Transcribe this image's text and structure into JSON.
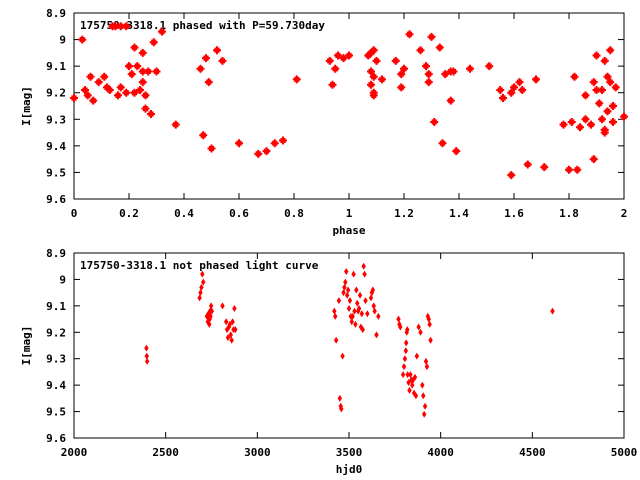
{
  "chart_data": [
    {
      "type": "scatter",
      "title": "175750-3318.1 phased with P=59.730day",
      "xlabel": "phase",
      "ylabel": "I[mag]",
      "xlim": [
        0,
        2
      ],
      "ylim": [
        9.6,
        8.9
      ],
      "y_inverted": true,
      "xticks": [
        "0",
        "0.2",
        "0.4",
        "0.6",
        "0.8",
        "1",
        "1.2",
        "1.4",
        "1.6",
        "1.8",
        "2"
      ],
      "yticks": [
        "8.9",
        "9",
        "9.1",
        "9.2",
        "9.3",
        "9.4",
        "9.5",
        "9.6"
      ],
      "grid": false,
      "marker_color": "#ff0000",
      "marker": "filled-square-plus",
      "points": [
        [
          0.0,
          9.22
        ],
        [
          0.03,
          9.0
        ],
        [
          0.04,
          9.19
        ],
        [
          0.05,
          9.21
        ],
        [
          0.06,
          9.14
        ],
        [
          0.07,
          9.23
        ],
        [
          0.09,
          9.16
        ],
        [
          0.11,
          9.14
        ],
        [
          0.12,
          9.18
        ],
        [
          0.13,
          9.19
        ],
        [
          0.14,
          8.95
        ],
        [
          0.15,
          8.95
        ],
        [
          0.16,
          9.21
        ],
        [
          0.17,
          9.18
        ],
        [
          0.17,
          8.95
        ],
        [
          0.19,
          8.95
        ],
        [
          0.19,
          9.2
        ],
        [
          0.2,
          9.1
        ],
        [
          0.21,
          9.13
        ],
        [
          0.22,
          9.03
        ],
        [
          0.22,
          9.2
        ],
        [
          0.23,
          9.1
        ],
        [
          0.24,
          9.19
        ],
        [
          0.25,
          9.16
        ],
        [
          0.25,
          9.05
        ],
        [
          0.25,
          9.12
        ],
        [
          0.26,
          9.26
        ],
        [
          0.26,
          9.21
        ],
        [
          0.27,
          9.12
        ],
        [
          0.28,
          9.28
        ],
        [
          0.29,
          9.01
        ],
        [
          0.3,
          9.12
        ],
        [
          0.32,
          8.97
        ],
        [
          0.37,
          9.32
        ],
        [
          0.46,
          9.11
        ],
        [
          0.47,
          9.36
        ],
        [
          0.48,
          9.07
        ],
        [
          0.49,
          9.16
        ],
        [
          0.5,
          9.41
        ],
        [
          0.52,
          9.04
        ],
        [
          0.54,
          9.08
        ],
        [
          0.6,
          9.39
        ],
        [
          0.67,
          9.43
        ],
        [
          0.7,
          9.42
        ],
        [
          0.73,
          9.39
        ],
        [
          0.76,
          9.38
        ],
        [
          0.81,
          9.15
        ],
        [
          0.93,
          9.08
        ],
        [
          0.94,
          9.17
        ],
        [
          0.95,
          9.11
        ],
        [
          0.96,
          9.06
        ],
        [
          0.98,
          9.07
        ],
        [
          1.0,
          9.06
        ],
        [
          1.07,
          9.06
        ],
        [
          1.08,
          9.05
        ],
        [
          1.08,
          9.12
        ],
        [
          1.08,
          9.17
        ],
        [
          1.09,
          9.14
        ],
        [
          1.09,
          9.21
        ],
        [
          1.09,
          9.2
        ],
        [
          1.09,
          9.04
        ],
        [
          1.1,
          9.08
        ],
        [
          1.12,
          9.15
        ],
        [
          1.17,
          9.08
        ],
        [
          1.19,
          9.13
        ],
        [
          1.19,
          9.18
        ],
        [
          1.2,
          9.11
        ],
        [
          1.22,
          8.98
        ],
        [
          1.26,
          9.04
        ],
        [
          1.28,
          9.1
        ],
        [
          1.29,
          9.13
        ],
        [
          1.29,
          9.16
        ],
        [
          1.3,
          8.99
        ],
        [
          1.31,
          9.31
        ],
        [
          1.33,
          9.03
        ],
        [
          1.34,
          9.39
        ],
        [
          1.35,
          9.13
        ],
        [
          1.37,
          9.12
        ],
        [
          1.37,
          9.23
        ],
        [
          1.38,
          9.12
        ],
        [
          1.39,
          9.42
        ],
        [
          1.44,
          9.11
        ],
        [
          1.51,
          9.1
        ],
        [
          1.55,
          9.19
        ],
        [
          1.56,
          9.22
        ],
        [
          1.59,
          9.2
        ],
        [
          1.59,
          9.51
        ],
        [
          1.6,
          9.18
        ],
        [
          1.62,
          9.16
        ],
        [
          1.63,
          9.19
        ],
        [
          1.65,
          9.47
        ],
        [
          1.68,
          9.15
        ],
        [
          1.71,
          9.48
        ],
        [
          1.78,
          9.32
        ],
        [
          1.8,
          9.49
        ],
        [
          1.81,
          9.31
        ],
        [
          1.82,
          9.14
        ],
        [
          1.83,
          9.49
        ],
        [
          1.84,
          9.33
        ],
        [
          1.86,
          9.21
        ],
        [
          1.86,
          9.3
        ],
        [
          1.88,
          9.32
        ],
        [
          1.89,
          9.45
        ],
        [
          1.89,
          9.16
        ],
        [
          1.9,
          9.06
        ],
        [
          1.9,
          9.19
        ],
        [
          1.91,
          9.24
        ],
        [
          1.92,
          9.19
        ],
        [
          1.92,
          9.3
        ],
        [
          1.93,
          9.34
        ],
        [
          1.93,
          9.35
        ],
        [
          1.93,
          9.08
        ],
        [
          1.94,
          9.27
        ],
        [
          1.94,
          9.14
        ],
        [
          1.95,
          9.04
        ],
        [
          1.95,
          9.16
        ],
        [
          1.96,
          9.31
        ],
        [
          1.96,
          9.25
        ],
        [
          1.97,
          9.18
        ],
        [
          2.0,
          9.29
        ]
      ]
    },
    {
      "type": "scatter",
      "title": "175750-3318.1 not phased light curve",
      "xlabel": "hjd0",
      "ylabel": "I[mag]",
      "xlim": [
        2000,
        5000
      ],
      "ylim": [
        9.6,
        8.9
      ],
      "y_inverted": true,
      "xticks": [
        "2000",
        "2500",
        "3000",
        "3500",
        "4000",
        "4500",
        "5000"
      ],
      "yticks": [
        "8.9",
        "9",
        "9.1",
        "9.2",
        "9.3",
        "9.4",
        "9.5",
        "9.6"
      ],
      "grid": false,
      "marker_color": "#ff0000",
      "marker": "diamond",
      "points": [
        [
          2395,
          9.26
        ],
        [
          2397,
          9.29
        ],
        [
          2399,
          9.31
        ],
        [
          2685,
          9.07
        ],
        [
          2690,
          9.05
        ],
        [
          2695,
          9.03
        ],
        [
          2700,
          8.98
        ],
        [
          2705,
          9.01
        ],
        [
          2725,
          9.14
        ],
        [
          2730,
          9.16
        ],
        [
          2733,
          9.13
        ],
        [
          2735,
          9.14
        ],
        [
          2738,
          9.17
        ],
        [
          2740,
          9.15
        ],
        [
          2742,
          9.12
        ],
        [
          2745,
          9.14
        ],
        [
          2748,
          9.1
        ],
        [
          2752,
          9.12
        ],
        [
          2810,
          9.1
        ],
        [
          2830,
          9.16
        ],
        [
          2835,
          9.19
        ],
        [
          2840,
          9.22
        ],
        [
          2845,
          9.18
        ],
        [
          2850,
          9.17
        ],
        [
          2855,
          9.21
        ],
        [
          2860,
          9.23
        ],
        [
          2865,
          9.16
        ],
        [
          2870,
          9.19
        ],
        [
          2875,
          9.11
        ],
        [
          2880,
          9.19
        ],
        [
          3420,
          9.12
        ],
        [
          3425,
          9.14
        ],
        [
          3430,
          9.23
        ],
        [
          3445,
          9.08
        ],
        [
          3450,
          9.45
        ],
        [
          3455,
          9.48
        ],
        [
          3458,
          9.49
        ],
        [
          3465,
          9.29
        ],
        [
          3470,
          9.05
        ],
        [
          3475,
          9.03
        ],
        [
          3480,
          9.01
        ],
        [
          3485,
          8.97
        ],
        [
          3490,
          9.06
        ],
        [
          3495,
          9.04
        ],
        [
          3500,
          9.11
        ],
        [
          3505,
          9.08
        ],
        [
          3510,
          9.14
        ],
        [
          3515,
          9.16
        ],
        [
          3520,
          9.14
        ],
        [
          3525,
          8.98
        ],
        [
          3530,
          9.12
        ],
        [
          3535,
          9.17
        ],
        [
          3540,
          9.04
        ],
        [
          3545,
          9.09
        ],
        [
          3550,
          9.12
        ],
        [
          3555,
          9.11
        ],
        [
          3560,
          9.06
        ],
        [
          3565,
          9.18
        ],
        [
          3570,
          9.13
        ],
        [
          3575,
          9.19
        ],
        [
          3580,
          8.95
        ],
        [
          3585,
          8.98
        ],
        [
          3590,
          9.08
        ],
        [
          3600,
          9.13
        ],
        [
          3620,
          9.07
        ],
        [
          3625,
          9.05
        ],
        [
          3630,
          9.04
        ],
        [
          3635,
          9.1
        ],
        [
          3640,
          9.12
        ],
        [
          3650,
          9.21
        ],
        [
          3660,
          9.14
        ],
        [
          3770,
          9.15
        ],
        [
          3775,
          9.17
        ],
        [
          3780,
          9.18
        ],
        [
          3795,
          9.36
        ],
        [
          3800,
          9.33
        ],
        [
          3805,
          9.3
        ],
        [
          3810,
          9.27
        ],
        [
          3812,
          9.24
        ],
        [
          3815,
          9.2
        ],
        [
          3818,
          9.19
        ],
        [
          3820,
          9.36
        ],
        [
          3825,
          9.39
        ],
        [
          3830,
          9.42
        ],
        [
          3835,
          9.36
        ],
        [
          3840,
          9.38
        ],
        [
          3845,
          9.4
        ],
        [
          3850,
          9.38
        ],
        [
          3855,
          9.43
        ],
        [
          3860,
          9.37
        ],
        [
          3865,
          9.44
        ],
        [
          3870,
          9.29
        ],
        [
          3880,
          9.18
        ],
        [
          3890,
          9.2
        ],
        [
          3900,
          9.4
        ],
        [
          3905,
          9.44
        ],
        [
          3910,
          9.51
        ],
        [
          3915,
          9.48
        ],
        [
          3920,
          9.31
        ],
        [
          3925,
          9.33
        ],
        [
          3930,
          9.14
        ],
        [
          3935,
          9.15
        ],
        [
          3940,
          9.17
        ],
        [
          3945,
          9.23
        ],
        [
          4610,
          9.12
        ]
      ]
    }
  ]
}
